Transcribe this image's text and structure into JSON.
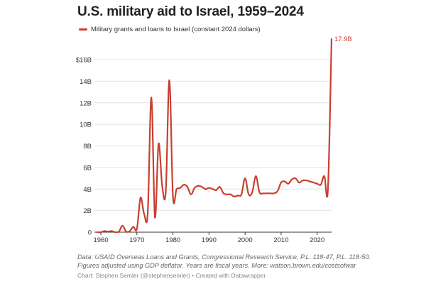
{
  "chart_data": {
    "type": "line",
    "title": "U.S. military aid to Israel, 1959–2024",
    "series": [
      {
        "name": "Military grants and loans to Israel (constant 2024 dollars)",
        "color": "#c83f30",
        "x": [
          1959,
          1960,
          1961,
          1962,
          1963,
          1964,
          1965,
          1966,
          1967,
          1968,
          1969,
          1970,
          1971,
          1972,
          1973,
          1974,
          1975,
          1976,
          1977,
          1978,
          1979,
          1980,
          1981,
          1982,
          1983,
          1984,
          1985,
          1986,
          1987,
          1988,
          1989,
          1990,
          1991,
          1992,
          1993,
          1994,
          1995,
          1996,
          1997,
          1998,
          1999,
          2000,
          2001,
          2002,
          2003,
          2004,
          2005,
          2006,
          2007,
          2008,
          2009,
          2010,
          2011,
          2012,
          2013,
          2014,
          2015,
          2016,
          2017,
          2018,
          2019,
          2020,
          2021,
          2022,
          2023,
          2024
        ],
        "values": [
          0,
          0,
          0.1,
          0.05,
          0.1,
          0,
          0.05,
          0.6,
          0.05,
          0.1,
          0.5,
          0.3,
          3.2,
          1.7,
          1.8,
          12.5,
          1.4,
          8.2,
          4.3,
          3.8,
          14.1,
          3.3,
          4.0,
          4.1,
          4.4,
          4.2,
          3.5,
          4.1,
          4.3,
          4.2,
          4.0,
          4.1,
          4.0,
          3.9,
          4.2,
          3.6,
          3.5,
          3.5,
          3.3,
          3.4,
          3.5,
          5.0,
          3.5,
          3.7,
          5.2,
          3.7,
          3.6,
          3.6,
          3.6,
          3.6,
          3.8,
          4.6,
          4.7,
          4.5,
          4.9,
          5.0,
          4.6,
          4.8,
          4.8,
          4.7,
          4.6,
          4.5,
          4.4,
          5.2,
          4.0,
          17.9
        ]
      }
    ],
    "end_label": "17.9B",
    "y_ticks": [
      "0",
      "2B",
      "4B",
      "6B",
      "8B",
      "10B",
      "12B",
      "14B",
      "$16B"
    ],
    "x_ticks": [
      "1960",
      "1970",
      "1980",
      "1990",
      "2000",
      "2010",
      "2020"
    ],
    "ylim": [
      0,
      18
    ],
    "xlim": [
      1959,
      2024
    ],
    "xlabel": "",
    "ylabel": "",
    "grid": true
  },
  "legend_label": "Military grants and loans to Israel (constant 2024 dollars)",
  "notes": {
    "line1": "Data: USAID Overseas Loans and Grants, Congressional Research Service, P.L. 118-47, P.L. 118-50.",
    "line2": "Figures adjusted using GDP deflator. Years are fiscal years. More: watson.brown.edu/costsofwar",
    "credit": "Chart: Stephen Semler (@stephensemler) • Created with Datawrapper"
  }
}
